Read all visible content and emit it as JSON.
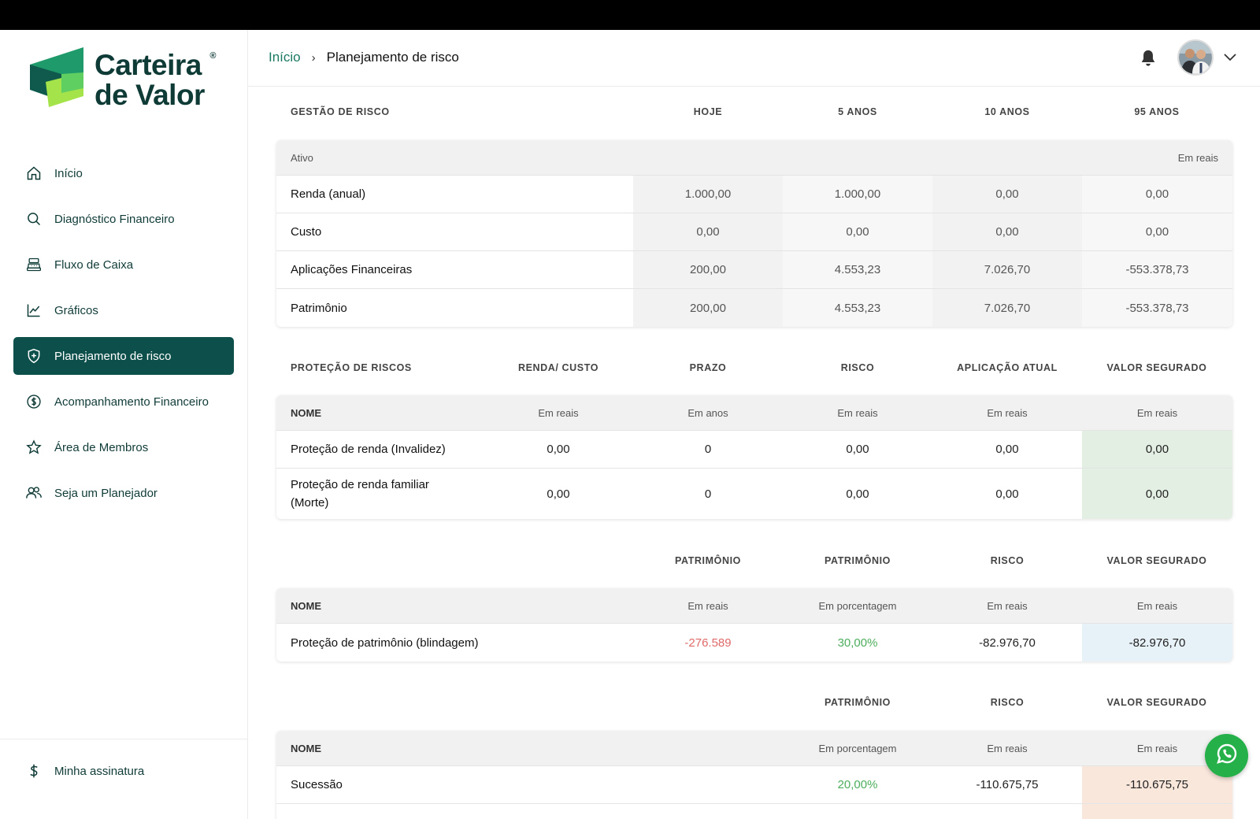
{
  "brand": {
    "line1": "Carteira",
    "line2": "de Valor",
    "reg": "®"
  },
  "colors": {
    "primary": "#0d4f4a",
    "accent_green": "#1a7a62",
    "negative": "#e06a6a",
    "positive": "#4cae5c"
  },
  "sidebar": {
    "items": [
      {
        "label": "Início",
        "icon": "home-icon"
      },
      {
        "label": "Diagnóstico Financeiro",
        "icon": "search-icon"
      },
      {
        "label": "Fluxo de Caixa",
        "icon": "cash-register-icon"
      },
      {
        "label": "Gráficos",
        "icon": "line-chart-icon"
      },
      {
        "label": "Planejamento de risco",
        "icon": "shield-plus-icon",
        "active": true
      },
      {
        "label": "Acompanhamento Financeiro",
        "icon": "dollar-circle-icon"
      },
      {
        "label": "Área de Membros",
        "icon": "star-icon"
      },
      {
        "label": "Seja um Planejador",
        "icon": "users-icon"
      }
    ],
    "bottom": {
      "label": "Minha assinatura",
      "icon": "dollar-icon"
    }
  },
  "header": {
    "crumb_home": "Início",
    "crumb_sep": "›",
    "crumb_current": "Planejamento de risco"
  },
  "gestao": {
    "title": "GESTÃO DE RISCO",
    "cols": [
      "HOJE",
      "5 ANOS",
      "10 ANOS",
      "95 ANOS"
    ],
    "sub_left": "Ativo",
    "sub_right": "Em reais",
    "rows": [
      {
        "name": "Renda (anual)",
        "values": [
          "1.000,00",
          "1.000,00",
          "0,00",
          "0,00"
        ]
      },
      {
        "name": "Custo",
        "values": [
          "0,00",
          "0,00",
          "0,00",
          "0,00"
        ]
      },
      {
        "name": "Aplicações Financeiras",
        "values": [
          "200,00",
          "4.553,23",
          "7.026,70",
          "-553.378,73"
        ]
      },
      {
        "name": "Patrimônio",
        "values": [
          "200,00",
          "4.553,23",
          "7.026,70",
          "-553.378,73"
        ]
      }
    ]
  },
  "protecao": {
    "title": "PROTEÇÃO DE RISCOS",
    "cols": [
      "RENDA/ CUSTO",
      "PRAZO",
      "RISCO",
      "APLICAÇÃO ATUAL",
      "VALOR SEGURADO"
    ],
    "name_header": "NOME",
    "units": [
      "Em reais",
      "Em anos",
      "Em reais",
      "Em reais",
      "Em reais"
    ],
    "rows": [
      {
        "name": "Proteção de renda (Invalidez)",
        "values": [
          "0,00",
          "0",
          "0,00",
          "0,00",
          "0,00"
        ]
      },
      {
        "name_l1": "Proteção de renda familiar",
        "name_l2": "(Morte)",
        "values": [
          "0,00",
          "0",
          "0,00",
          "0,00",
          "0,00"
        ]
      }
    ]
  },
  "blindagem": {
    "cols": [
      "PATRIMÔNIO",
      "PATRIMÔNIO",
      "RISCO",
      "VALOR SEGURADO"
    ],
    "name_header": "NOME",
    "units": [
      "Em reais",
      "Em porcentagem",
      "Em reais",
      "Em reais"
    ],
    "row": {
      "name": "Proteção de patrimônio (blindagem)",
      "values": [
        "-276.589",
        "30,00%",
        "-82.976,70",
        "-82.976,70"
      ]
    }
  },
  "sucessao": {
    "cols": [
      "PATRIMÔNIO",
      "RISCO",
      "VALOR SEGURADO"
    ],
    "name_header": "NOME",
    "units": [
      "Em porcentagem",
      "Em reais",
      "Em reais"
    ],
    "row": {
      "name": "Sucessão",
      "values": [
        "20,00%",
        "-110.675,75",
        "-110.675,75"
      ]
    }
  }
}
